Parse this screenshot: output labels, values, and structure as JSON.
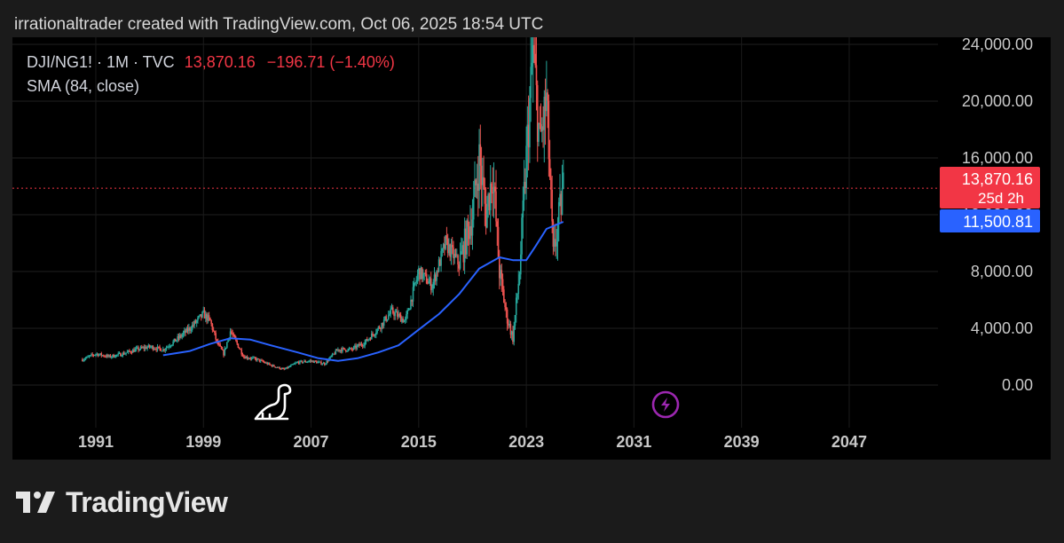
{
  "header": {
    "credit": "irrationaltrader created with TradingView.com, Oct 06, 2025 18:54 UTC"
  },
  "legend": {
    "symbol": "DJI/NG1! · 1M · TVC",
    "last_value": "13,870.16",
    "change": "−196.71 (−1.40%)",
    "indicator": "SMA (84, close)"
  },
  "price_labels": {
    "last_price": "13,870.16",
    "countdown": "25d 2h",
    "sma_value": "11,500.81"
  },
  "footer": {
    "brand": "TradingView"
  },
  "icons": [
    "dinosaur-icon",
    "lightning-icon",
    "tradingview-logo-icon"
  ],
  "colors": {
    "background": "#000000",
    "up": "#26a69a",
    "down": "#ef5350",
    "sma": "#2962ff",
    "last_price_line": "#f23645",
    "lightning": "#9c27b0"
  },
  "chart_data": {
    "type": "line",
    "title": "DJI/NG1! · 1M · TVC",
    "x_ticks": [
      "1991",
      "1999",
      "2007",
      "2015",
      "2023",
      "2031",
      "2039",
      "2047"
    ],
    "y_ticks": [
      "0.00",
      "4,000.00",
      "8,000.00",
      "12,000.00",
      "16,000.00",
      "20,000.00",
      "24,000.00"
    ],
    "xlim": [
      1984.8,
      2053.6
    ],
    "ylim": [
      -3000,
      24500
    ],
    "grid": true,
    "last_price": 13870.16,
    "series": [
      {
        "name": "DJI/NG1!",
        "style": "candles",
        "x": [
          1990.0,
          1991.0,
          1992.0,
          1993.0,
          1994.0,
          1995.0,
          1996.0,
          1997.0,
          1998.0,
          1999.0,
          1999.5,
          2000.0,
          2000.5,
          2001.0,
          2002.0,
          2003.0,
          2004.0,
          2005.0,
          2006.0,
          2007.0,
          2008.0,
          2009.0,
          2010.0,
          2011.0,
          2012.0,
          2013.0,
          2014.0,
          2015.0,
          2016.0,
          2017.0,
          2018.0,
          2019.0,
          2019.5,
          2020.0,
          2020.5,
          2021.0,
          2021.5,
          2022.0,
          2022.5,
          2023.0,
          2023.5,
          2024.0,
          2024.5,
          2025.0,
          2025.75
        ],
        "values": [
          1800,
          2200,
          2000,
          2200,
          2500,
          2700,
          2500,
          3200,
          4000,
          5000,
          4500,
          3000,
          2200,
          3800,
          2000,
          1800,
          1400,
          1100,
          1600,
          1700,
          1500,
          2500,
          2500,
          3000,
          4000,
          5200,
          4500,
          8000,
          7000,
          10000,
          8500,
          12000,
          16000,
          12000,
          15000,
          8000,
          5000,
          3300,
          8000,
          16000,
          23500,
          17000,
          20000,
          9000,
          13870
        ]
      },
      {
        "name": "SMA (84, close)",
        "x": [
          1996.0,
          1998.0,
          1999.5,
          2001.0,
          2002.5,
          2004.0,
          2006.0,
          2007.5,
          2009.0,
          2010.5,
          2012.0,
          2013.5,
          2015.0,
          2016.5,
          2018.0,
          2019.5,
          2021.0,
          2022.0,
          2023.0,
          2023.7,
          2024.5,
          2025.75
        ],
        "values": [
          2100,
          2400,
          2900,
          3300,
          3200,
          2800,
          2300,
          1900,
          1700,
          1900,
          2300,
          2800,
          3900,
          5000,
          6400,
          8200,
          9000,
          8800,
          8800,
          9800,
          11000,
          11500
        ]
      }
    ]
  }
}
